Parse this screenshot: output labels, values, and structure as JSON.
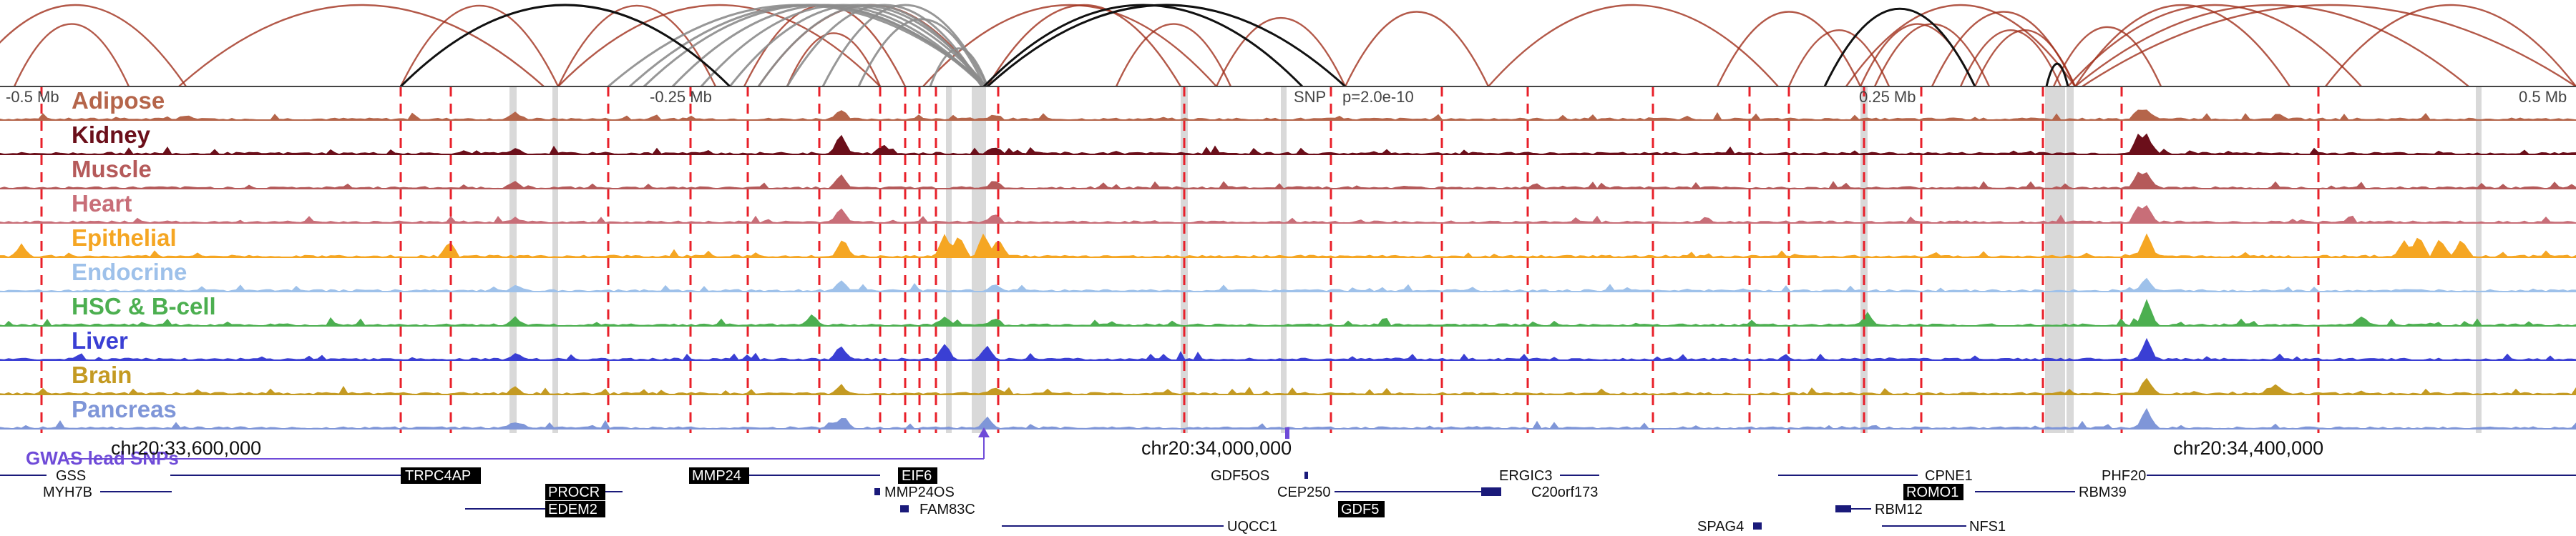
{
  "locus": {
    "offsets": [
      "-0.5 Mb",
      "-0.25 Mb",
      "0.25 Mb",
      "0.5 Mb"
    ],
    "snp_label": "SNP",
    "snp_p": "p=2.0e-10",
    "coordinates": [
      "chr20:33,600,000",
      "chr20:34,000,000",
      "chr20:34,400,000"
    ],
    "gwas_label": "GWAS lead SNPs"
  },
  "tracks": [
    {
      "name": "Adipose",
      "color": "#b5654a"
    },
    {
      "name": "Kidney",
      "color": "#6b0f1a"
    },
    {
      "name": "Muscle",
      "color": "#b55a5a"
    },
    {
      "name": "Heart",
      "color": "#c86e78"
    },
    {
      "name": "Epithelial",
      "color": "#f5a623"
    },
    {
      "name": "Endocrine",
      "color": "#9ec1ea"
    },
    {
      "name": "HSC & B-cell",
      "color": "#4caf50"
    },
    {
      "name": "Liver",
      "color": "#3a3fd4"
    },
    {
      "name": "Brain",
      "color": "#c49a22"
    },
    {
      "name": "Pancreas",
      "color": "#7f96d8"
    }
  ],
  "genes": [
    {
      "name": "GSS",
      "highlight": false
    },
    {
      "name": "MYH7B",
      "highlight": false
    },
    {
      "name": "TRPC4AP",
      "highlight": true
    },
    {
      "name": "PROCR",
      "highlight": true
    },
    {
      "name": "EDEM2",
      "highlight": true
    },
    {
      "name": "MMP24",
      "highlight": true
    },
    {
      "name": "EIF6",
      "highlight": true
    },
    {
      "name": "MMP24OS",
      "highlight": false
    },
    {
      "name": "FAM83C",
      "highlight": false
    },
    {
      "name": "UQCC1",
      "highlight": false
    },
    {
      "name": "GDF5OS",
      "highlight": false
    },
    {
      "name": "CEP250",
      "highlight": false
    },
    {
      "name": "GDF5",
      "highlight": true
    },
    {
      "name": "ERGIC3",
      "highlight": false
    },
    {
      "name": "C20orf173",
      "highlight": false
    },
    {
      "name": "SPAG4",
      "highlight": false
    },
    {
      "name": "CPNE1",
      "highlight": false
    },
    {
      "name": "ROMO1",
      "highlight": true
    },
    {
      "name": "RBM39",
      "highlight": false
    },
    {
      "name": "RBM12",
      "highlight": false
    },
    {
      "name": "NFS1",
      "highlight": false
    },
    {
      "name": "PHF20",
      "highlight": false
    }
  ],
  "colors": {
    "loop_red": "#a0301c",
    "loop_black": "#111111",
    "loop_gray": "#8c8c8c",
    "marker_red": "#e8202a",
    "highlight_band": "#d9d9d9",
    "gene_body": "#1a1a7a",
    "gwas": "#6f4bd8"
  }
}
